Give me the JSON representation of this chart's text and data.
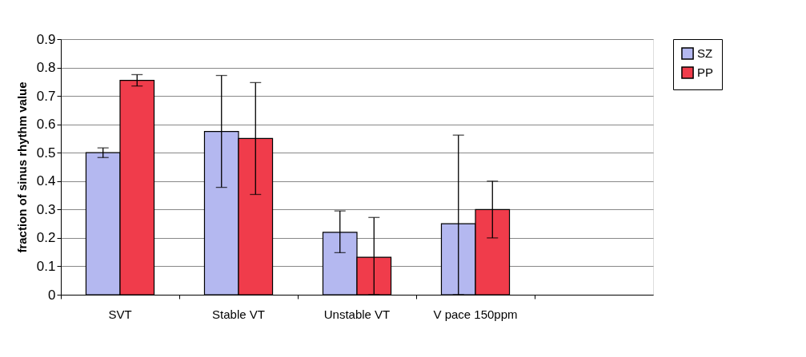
{
  "chart_data": {
    "type": "bar",
    "ylabel": "fraction of sinus rhythm value",
    "categories": [
      "SVT",
      "Stable VT",
      "Unstable VT",
      "V pace 150ppm",
      null
    ],
    "series": [
      {
        "name": "SZ",
        "color": "#b4b8f0",
        "values": [
          0.5,
          0.575,
          0.22,
          0.25,
          null
        ],
        "errors": [
          0.017,
          0.197,
          [
            0.148,
            0.295
          ],
          [
            0,
            0.562
          ],
          null
        ]
      },
      {
        "name": "PP",
        "color": "#f03c4b",
        "values": [
          0.755,
          0.55,
          0.132,
          0.3,
          null
        ],
        "errors": [
          0.02,
          0.197,
          [
            0,
            0.272
          ],
          0.1,
          null
        ]
      }
    ],
    "ylim": [
      0,
      0.9
    ],
    "yticks": [
      0,
      0.1,
      0.2,
      0.3,
      0.4,
      0.5,
      0.6,
      0.7,
      0.8,
      0.9
    ],
    "grid": "y",
    "legend": "right"
  }
}
